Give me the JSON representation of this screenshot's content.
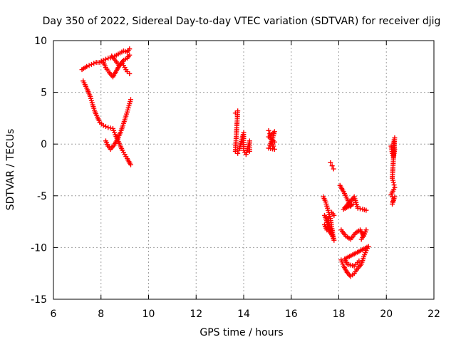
{
  "chart_data": {
    "type": "scatter",
    "title": "Day 350 of 2022, Sidereal Day-to-day VTEC variation (SDTVAR) for receiver djig",
    "xlabel": "GPS time / hours",
    "ylabel": "SDTVAR / TECUs",
    "xlim": [
      6,
      22
    ],
    "ylim": [
      -15,
      10
    ],
    "xticks": [
      "6",
      "8",
      "10",
      "12",
      "14",
      "16",
      "18",
      "20",
      "22"
    ],
    "yticks": [
      "-15",
      "-10",
      "-5",
      "0",
      "5",
      "10"
    ],
    "grid": true,
    "marker": "plus",
    "color": "#ff0000",
    "series": [
      {
        "tracks": [
          [
            [
              7.2,
              7.2
            ],
            [
              7.4,
              7.5
            ],
            [
              7.6,
              7.7
            ],
            [
              7.8,
              7.9
            ],
            [
              7.95,
              7.9
            ],
            [
              8.1,
              8.1
            ],
            [
              8.3,
              8.3
            ],
            [
              8.5,
              8.4
            ],
            [
              8.65,
              8.6
            ],
            [
              8.8,
              8.8
            ],
            [
              8.95,
              9.0
            ],
            [
              9.1,
              8.9
            ],
            [
              9.2,
              9.2
            ]
          ],
          [
            [
              8.1,
              7.9
            ],
            [
              8.2,
              7.4
            ],
            [
              8.35,
              6.9
            ],
            [
              8.5,
              6.5
            ],
            [
              8.65,
              7.1
            ],
            [
              8.8,
              7.7
            ],
            [
              8.95,
              8.1
            ],
            [
              9.1,
              8.3
            ],
            [
              9.2,
              8.6
            ]
          ],
          [
            [
              8.45,
              8.5
            ],
            [
              8.6,
              8.1
            ],
            [
              8.75,
              7.6
            ],
            [
              8.9,
              7.8
            ],
            [
              9.0,
              7.4
            ],
            [
              9.1,
              7.0
            ],
            [
              9.2,
              6.8
            ]
          ],
          [
            [
              7.25,
              6.1
            ],
            [
              7.4,
              5.4
            ],
            [
              7.55,
              4.6
            ],
            [
              7.65,
              3.8
            ],
            [
              7.75,
              3.1
            ],
            [
              7.85,
              2.6
            ],
            [
              7.95,
              2.1
            ],
            [
              8.1,
              1.8
            ],
            [
              8.3,
              1.6
            ],
            [
              8.5,
              1.5
            ],
            [
              8.6,
              0.9
            ],
            [
              8.7,
              0.4
            ],
            [
              8.8,
              -0.1
            ],
            [
              8.9,
              -0.6
            ],
            [
              9.0,
              -1.0
            ],
            [
              9.1,
              -1.4
            ],
            [
              9.25,
              -2.0
            ]
          ],
          [
            [
              8.2,
              0.3
            ],
            [
              8.3,
              -0.2
            ],
            [
              8.4,
              -0.5
            ],
            [
              8.55,
              -0.1
            ],
            [
              8.7,
              0.5
            ],
            [
              8.85,
              1.3
            ],
            [
              8.95,
              2.0
            ],
            [
              9.05,
              2.7
            ],
            [
              9.15,
              3.5
            ],
            [
              9.25,
              4.3
            ]
          ],
          [
            [
              13.65,
              3.0
            ],
            [
              13.75,
              3.2
            ],
            [
              13.65,
              -0.7
            ],
            [
              13.75,
              -0.9
            ],
            [
              13.8,
              -0.6
            ],
            [
              14.0,
              1.1
            ],
            [
              14.0,
              -0.6
            ],
            [
              14.1,
              -1.0
            ],
            [
              14.25,
              0.3
            ],
            [
              14.25,
              -0.7
            ]
          ],
          [
            [
              15.05,
              1.3
            ],
            [
              15.1,
              1.0
            ],
            [
              15.15,
              0.6
            ],
            [
              15.2,
              0.2
            ],
            [
              15.25,
              -0.2
            ],
            [
              15.3,
              -0.5
            ],
            [
              15.05,
              -0.4
            ],
            [
              15.1,
              -0.1
            ],
            [
              15.2,
              0.4
            ],
            [
              15.25,
              0.8
            ],
            [
              15.3,
              1.2
            ],
            [
              15.05,
              0.7
            ],
            [
              15.3,
              0.2
            ]
          ],
          [
            [
              17.65,
              -1.8
            ],
            [
              17.72,
              -2.1
            ],
            [
              17.78,
              -2.4
            ]
          ],
          [
            [
              17.35,
              -5.1
            ],
            [
              17.45,
              -5.6
            ],
            [
              17.55,
              -6.4
            ],
            [
              17.65,
              -7.2
            ],
            [
              17.7,
              -8.0
            ],
            [
              17.75,
              -8.7
            ],
            [
              17.8,
              -9.3
            ],
            [
              17.4,
              -6.9
            ],
            [
              17.55,
              -7.4
            ],
            [
              17.65,
              -8.2
            ],
            [
              17.75,
              -8.9
            ],
            [
              17.4,
              -7.8
            ],
            [
              17.5,
              -8.3
            ],
            [
              17.6,
              -6.8
            ],
            [
              17.7,
              -6.6
            ],
            [
              17.8,
              -6.9
            ]
          ],
          [
            [
              18.05,
              -4.0
            ],
            [
              18.2,
              -4.6
            ],
            [
              18.35,
              -5.3
            ],
            [
              18.5,
              -6.0
            ],
            [
              18.6,
              -5.8
            ],
            [
              18.2,
              -6.3
            ],
            [
              18.35,
              -5.9
            ],
            [
              18.5,
              -5.5
            ],
            [
              18.65,
              -5.1
            ],
            [
              18.8,
              -6.2
            ],
            [
              19.0,
              -6.3
            ],
            [
              19.15,
              -6.4
            ]
          ],
          [
            [
              18.1,
              -8.3
            ],
            [
              18.3,
              -8.9
            ],
            [
              18.5,
              -9.2
            ],
            [
              18.7,
              -8.6
            ],
            [
              18.9,
              -8.3
            ],
            [
              19.05,
              -8.9
            ],
            [
              19.15,
              -8.3
            ],
            [
              18.95,
              -9.2
            ]
          ],
          [
            [
              18.1,
              -11.2
            ],
            [
              18.2,
              -11.8
            ],
            [
              18.35,
              -12.4
            ],
            [
              18.5,
              -12.8
            ],
            [
              18.65,
              -12.5
            ],
            [
              18.8,
              -12.0
            ],
            [
              18.95,
              -11.6
            ],
            [
              19.05,
              -10.9
            ],
            [
              19.15,
              -10.3
            ],
            [
              19.25,
              -9.9
            ],
            [
              18.25,
              -11.1
            ],
            [
              18.35,
              -11.6
            ],
            [
              18.65,
              -11.8
            ],
            [
              18.85,
              -11.3
            ]
          ],
          [
            [
              20.2,
              -0.2
            ],
            [
              20.25,
              -0.9
            ],
            [
              20.3,
              -1.3
            ],
            [
              20.35,
              -0.5
            ],
            [
              20.3,
              0.2
            ],
            [
              20.35,
              0.6
            ],
            [
              20.25,
              -3.3
            ],
            [
              20.3,
              -3.7
            ],
            [
              20.35,
              -4.2
            ],
            [
              20.2,
              -4.9
            ],
            [
              20.3,
              -5.3
            ],
            [
              20.25,
              -5.8
            ],
            [
              20.35,
              -5.1
            ]
          ]
        ]
      }
    ]
  }
}
